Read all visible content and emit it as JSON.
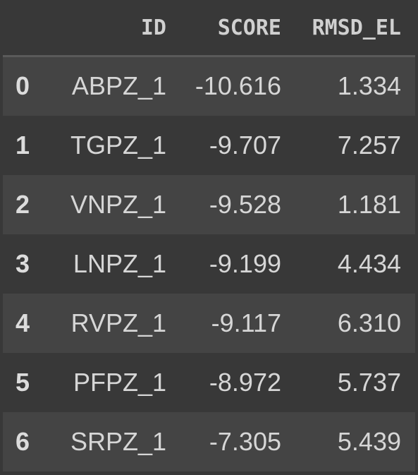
{
  "table": {
    "columns": [
      "",
      "ID",
      "SCORE",
      "RMSD_EL"
    ],
    "rows": [
      {
        "index": "0",
        "id": "ABPZ_1",
        "score": "-10.616",
        "rmsd_el": "1.334"
      },
      {
        "index": "1",
        "id": "TGPZ_1",
        "score": "-9.707",
        "rmsd_el": "7.257"
      },
      {
        "index": "2",
        "id": "VNPZ_1",
        "score": "-9.528",
        "rmsd_el": "1.181"
      },
      {
        "index": "3",
        "id": "LNPZ_1",
        "score": "-9.199",
        "rmsd_el": "4.434"
      },
      {
        "index": "4",
        "id": "RVPZ_1",
        "score": "-9.117",
        "rmsd_el": "6.310"
      },
      {
        "index": "5",
        "id": "PFPZ_1",
        "score": "-8.972",
        "rmsd_el": "5.737"
      },
      {
        "index": "6",
        "id": "SRPZ_1",
        "score": "-7.305",
        "rmsd_el": "5.439"
      }
    ]
  },
  "colors": {
    "background": "#383838",
    "row_alt": "#444444",
    "text": "#d6d6d6",
    "header_rule": "#5a5a5a"
  }
}
